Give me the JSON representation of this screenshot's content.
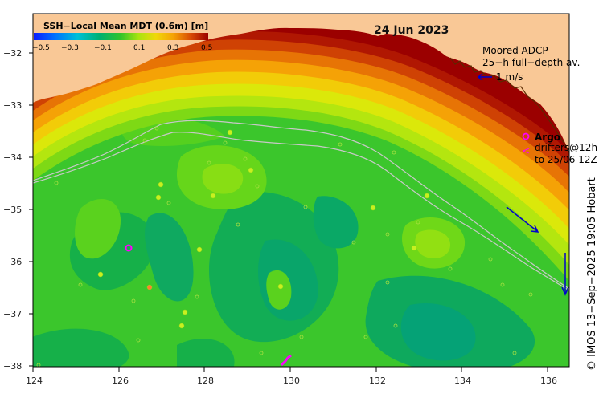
{
  "map": {
    "date": "24 Jun 2023",
    "colorbar": {
      "title": "SSH−Local Mean MDT (0.6m) [m]",
      "ticks": [
        "−0.5",
        "−0.3",
        "−0.1",
        "0.1",
        "0.3",
        "0.5"
      ]
    },
    "legend": {
      "adcp_title": "Moored ADCP",
      "adcp_sub": "25−h full−depth av.",
      "adcp_scale": "1 m/s",
      "argo_label": "Argo",
      "drifters_line1": "drifters@12h",
      "drifters_line2": "to 25/06 12Z"
    },
    "x_ticks": [
      "124",
      "126",
      "128",
      "130",
      "132",
      "134",
      "136"
    ],
    "y_ticks": [
      "−32",
      "−33",
      "−34",
      "−35",
      "−36",
      "−37",
      "−38"
    ],
    "credit": "© IMOS 13−Sep−2025 19:05 Hobart",
    "colors": {
      "land": "#f9c896",
      "deep_red": "#9b0000",
      "ocean_green": "#33c42a",
      "argo": "#ff00ff",
      "adcp": "#0000cc"
    },
    "lon_range": [
      124,
      136.5
    ],
    "lat_range": [
      -38.1,
      -31.5
    ]
  }
}
